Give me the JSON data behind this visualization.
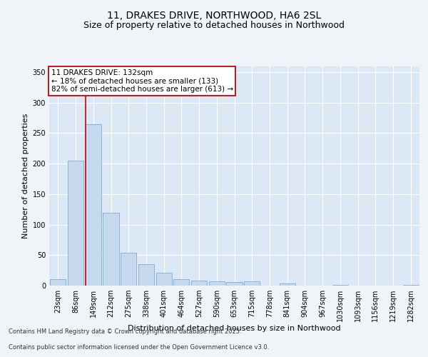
{
  "title1": "11, DRAKES DRIVE, NORTHWOOD, HA6 2SL",
  "title2": "Size of property relative to detached houses in Northwood",
  "xlabel": "Distribution of detached houses by size in Northwood",
  "ylabel": "Number of detached properties",
  "categories": [
    "23sqm",
    "86sqm",
    "149sqm",
    "212sqm",
    "275sqm",
    "338sqm",
    "401sqm",
    "464sqm",
    "527sqm",
    "590sqm",
    "653sqm",
    "715sqm",
    "778sqm",
    "841sqm",
    "904sqm",
    "967sqm",
    "1030sqm",
    "1093sqm",
    "1156sqm",
    "1219sqm",
    "1282sqm"
  ],
  "values": [
    11,
    205,
    265,
    120,
    54,
    35,
    21,
    11,
    8,
    7,
    6,
    7,
    0,
    4,
    0,
    0,
    1,
    0,
    0,
    0,
    1
  ],
  "bar_color": "#c5d8ed",
  "bar_edge_color": "#7aafd4",
  "vline_color": "#cc0000",
  "vline_index": 1.575,
  "annotation_text": "11 DRAKES DRIVE: 132sqm\n← 18% of detached houses are smaller (133)\n82% of semi-detached houses are larger (613) →",
  "annotation_box_color": "#ffffff",
  "annotation_box_edgecolor": "#cc0000",
  "ylim": [
    0,
    360
  ],
  "yticks": [
    0,
    50,
    100,
    150,
    200,
    250,
    300,
    350
  ],
  "background_color": "#f0f4f8",
  "plot_bg_color": "#dce8f5",
  "footer_line1": "Contains HM Land Registry data © Crown copyright and database right 2025.",
  "footer_line2": "Contains public sector information licensed under the Open Government Licence v3.0.",
  "title1_fontsize": 10,
  "title2_fontsize": 9,
  "xlabel_fontsize": 8,
  "ylabel_fontsize": 8,
  "tick_fontsize": 7,
  "annotation_fontsize": 7.5,
  "footer_fontsize": 6
}
